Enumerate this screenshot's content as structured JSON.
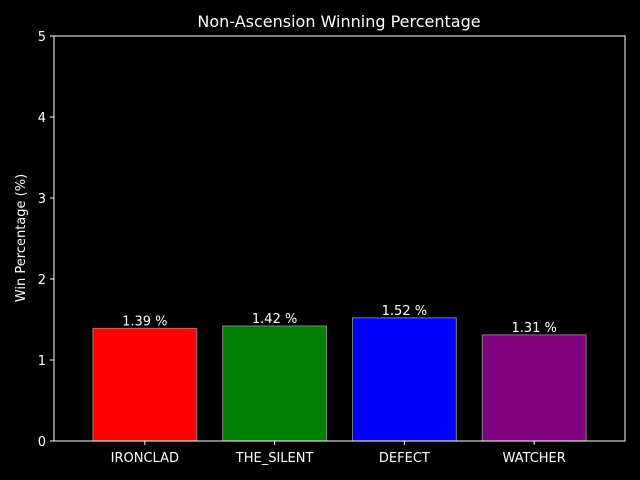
{
  "chart_data": {
    "type": "bar",
    "title": "Non-Ascension Winning Percentage",
    "xlabel": "",
    "ylabel": "Win Percentage (%)",
    "ylim": [
      0,
      5
    ],
    "yticks": [
      "0",
      "1",
      "2",
      "3",
      "4",
      "5"
    ],
    "categories": [
      "IRONCLAD",
      "THE_SILENT",
      "DEFECT",
      "WATCHER"
    ],
    "values": [
      1.39,
      1.42,
      1.52,
      1.31
    ],
    "data_labels": [
      "1.39 %",
      "1.42 %",
      "1.52 %",
      "1.31 %"
    ],
    "colors": [
      "#ff0000",
      "#008000",
      "#0000ff",
      "#800080"
    ],
    "edge_color": "#808080",
    "background": "#000000",
    "foreground": "#ffffff",
    "grid": false,
    "legend": "none"
  }
}
